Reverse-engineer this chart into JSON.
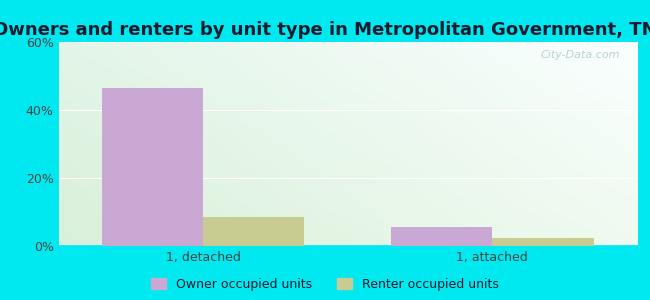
{
  "title": "Owners and renters by unit type in Metropolitan Government, TN",
  "categories": [
    "1, detached",
    "1, attached"
  ],
  "owner_values": [
    46.5,
    5.5
  ],
  "renter_values": [
    8.5,
    2.5
  ],
  "owner_color": "#c9a8d4",
  "renter_color": "#c8cc90",
  "ylim": [
    0,
    60
  ],
  "yticks": [
    0,
    20,
    40,
    60
  ],
  "ytick_labels": [
    "0%",
    "20%",
    "40%",
    "60%"
  ],
  "bar_width": 0.35,
  "cyan_bg": "#00e8f0",
  "watermark": "City-Data.com",
  "legend_owner": "Owner occupied units",
  "legend_renter": "Renter occupied units",
  "title_fontsize": 13,
  "tick_fontsize": 9,
  "legend_fontsize": 9
}
